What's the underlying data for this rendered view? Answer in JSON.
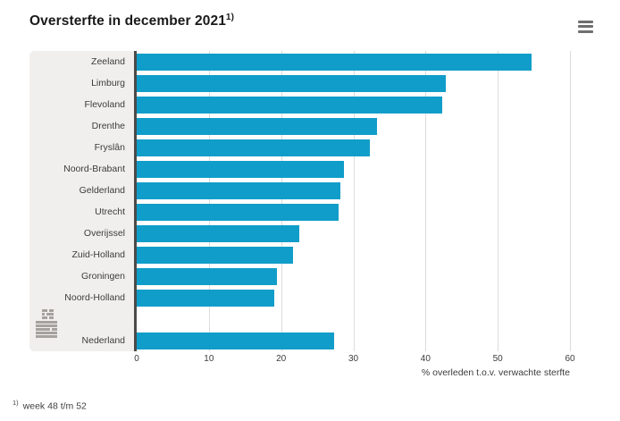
{
  "title": {
    "text": "Oversterfte in december 2021",
    "footnote_marker": "1)"
  },
  "menu": {
    "icon": "hamburger-icon"
  },
  "chart_data": {
    "type": "bar",
    "orientation": "horizontal",
    "title": "Oversterfte in december 2021 1)",
    "xlabel": "% overleden t.o.v. verwachte sterfte",
    "xlim": [
      0,
      60
    ],
    "xticks": [
      0,
      10,
      20,
      30,
      40,
      50,
      60
    ],
    "grid": true,
    "bar_color": "#119dc9",
    "panel_color": "#f1efed",
    "rows": [
      {
        "label": "Zeeland",
        "value": 54.7
      },
      {
        "label": "Limburg",
        "value": 42.8
      },
      {
        "label": "Flevoland",
        "value": 42.3
      },
      {
        "label": "Drenthe",
        "value": 33.3
      },
      {
        "label": "Fryslân",
        "value": 32.3
      },
      {
        "label": "Noord-Brabant",
        "value": 28.7
      },
      {
        "label": "Gelderland",
        "value": 28.2
      },
      {
        "label": "Utrecht",
        "value": 28.0
      },
      {
        "label": "Overijssel",
        "value": 22.5
      },
      {
        "label": "Zuid-Holland",
        "value": 21.7
      },
      {
        "label": "Groningen",
        "value": 19.4
      },
      {
        "label": "Noord-Holland",
        "value": 19.0
      },
      {
        "label": "",
        "value": null,
        "spacer": true
      },
      {
        "label": "Nederland",
        "value": 27.3
      }
    ]
  },
  "footnote": {
    "marker": "1)",
    "text": "week 48 t/m 52"
  },
  "logo": "cbs-logo"
}
